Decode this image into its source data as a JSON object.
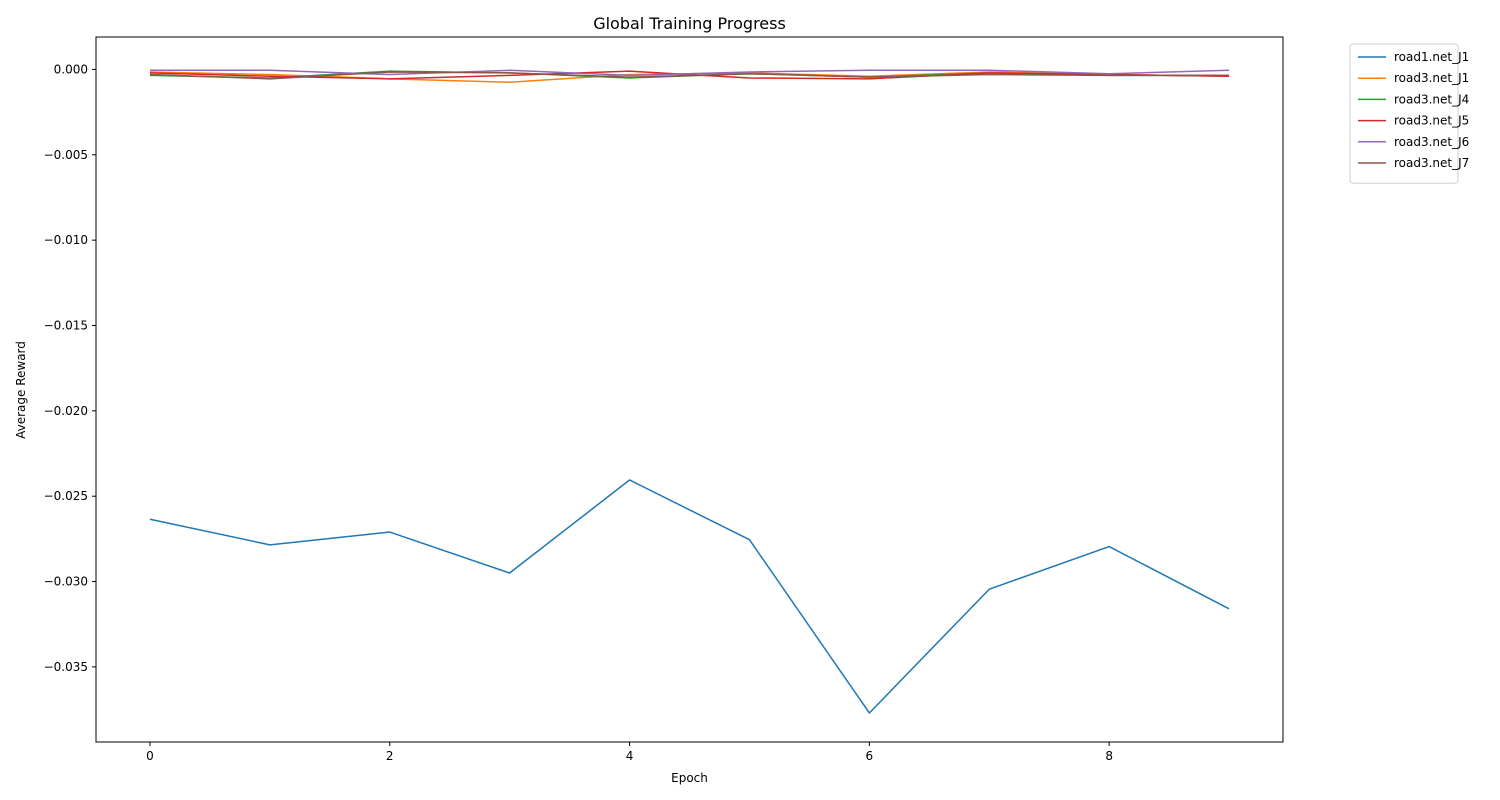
{
  "chart_data": {
    "type": "line",
    "title": "Global Training Progress",
    "xlabel": "Epoch",
    "ylabel": "Average Reward",
    "xlim": [
      -0.45,
      9.45
    ],
    "ylim": [
      -0.0394,
      0.0019
    ],
    "xticks": [
      0,
      2,
      4,
      6,
      8
    ],
    "xtick_labels": [
      "0",
      "2",
      "4",
      "6",
      "8"
    ],
    "yticks": [
      0.0,
      -0.005,
      -0.01,
      -0.015,
      -0.02,
      -0.025,
      -0.03,
      -0.035
    ],
    "ytick_labels": [
      "0.000",
      "−0.005",
      "−0.010",
      "−0.015",
      "−0.020",
      "−0.025",
      "−0.030",
      "−0.035"
    ],
    "grid": false,
    "legend_position": "outside-top-right",
    "x": [
      0,
      1,
      2,
      3,
      4,
      5,
      6,
      7,
      8,
      9
    ],
    "series": [
      {
        "name": "road1.net_J1",
        "color": "#1f77b4",
        "values": [
          -0.02635,
          -0.02785,
          -0.0271,
          -0.0295,
          -0.02405,
          -0.02755,
          -0.0377,
          -0.03045,
          -0.02795,
          -0.0316
        ]
      },
      {
        "name": "road3.net_J1",
        "color": "#ff7f0e",
        "values": [
          -0.00015,
          -0.0003,
          -0.00055,
          -0.00075,
          -0.0003,
          -0.0002,
          -0.0004,
          -0.00015,
          -0.0003,
          -0.0004
        ]
      },
      {
        "name": "road3.net_J4",
        "color": "#2ca02c",
        "values": [
          -0.00035,
          -0.0005,
          -0.0001,
          -0.0002,
          -0.0005,
          -0.00025,
          -0.00045,
          -0.0002,
          -0.00035,
          -0.00035
        ]
      },
      {
        "name": "road3.net_J5",
        "color": "#d62728",
        "values": [
          -0.0002,
          -0.0004,
          -0.00055,
          -0.00035,
          -0.0001,
          -0.0005,
          -0.00055,
          -0.0002,
          -0.0003,
          -0.0004
        ]
      },
      {
        "name": "road3.net_J6",
        "color": "#9467bd",
        "values": [
          -5e-05,
          -5e-05,
          -0.0003,
          -5e-05,
          -0.00035,
          -0.00015,
          -5e-05,
          -5e-05,
          -0.00025,
          -5e-05
        ]
      },
      {
        "name": "road3.net_J7",
        "color": "#8c564b",
        "values": [
          -0.0003,
          -0.00055,
          -0.00015,
          -0.0002,
          -0.00045,
          -0.00025,
          -0.00045,
          -0.0003,
          -0.00035,
          -0.00035
        ]
      }
    ]
  }
}
